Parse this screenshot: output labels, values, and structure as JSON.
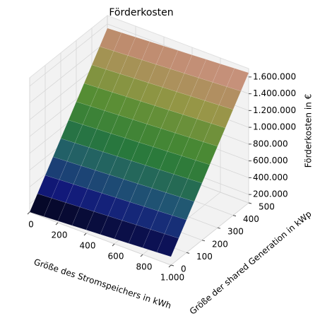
{
  "chart_data": {
    "type": "surface",
    "title": "Förderkosten",
    "x_label": "Größe des Stromspeichers in kWh",
    "y_label": "Größe der shared Generation in kWp",
    "z_label": "Förderkosten in €",
    "x": [
      0,
      100,
      200,
      300,
      400,
      500,
      600,
      700,
      800,
      900,
      1000
    ],
    "y": [
      0,
      50,
      100,
      150,
      200,
      250,
      300,
      350,
      400,
      450,
      500
    ],
    "z": [
      [
        100000,
        110000,
        120000,
        130000,
        140000,
        150000,
        160000,
        170000,
        180000,
        190000,
        200000
      ],
      [
        245000,
        255000,
        265000,
        275000,
        285000,
        295000,
        305000,
        315000,
        325000,
        335000,
        345000
      ],
      [
        390000,
        400000,
        410000,
        420000,
        430000,
        440000,
        450000,
        460000,
        470000,
        480000,
        490000
      ],
      [
        535000,
        545000,
        555000,
        565000,
        575000,
        585000,
        595000,
        605000,
        615000,
        625000,
        635000
      ],
      [
        680000,
        690000,
        700000,
        710000,
        720000,
        730000,
        740000,
        750000,
        760000,
        770000,
        780000
      ],
      [
        825000,
        835000,
        845000,
        855000,
        865000,
        875000,
        885000,
        895000,
        905000,
        915000,
        925000
      ],
      [
        970000,
        980000,
        990000,
        1000000,
        1010000,
        1020000,
        1030000,
        1040000,
        1050000,
        1060000,
        1070000
      ],
      [
        1115000,
        1125000,
        1135000,
        1145000,
        1155000,
        1165000,
        1175000,
        1185000,
        1195000,
        1205000,
        1215000
      ],
      [
        1260000,
        1270000,
        1280000,
        1290000,
        1300000,
        1310000,
        1320000,
        1330000,
        1340000,
        1350000,
        1360000
      ],
      [
        1405000,
        1415000,
        1425000,
        1435000,
        1445000,
        1455000,
        1465000,
        1475000,
        1485000,
        1495000,
        1505000
      ],
      [
        1550000,
        1560000,
        1570000,
        1580000,
        1590000,
        1600000,
        1610000,
        1620000,
        1630000,
        1640000,
        1650000
      ]
    ],
    "xlim": [
      0,
      1000
    ],
    "xticks": [
      0,
      200,
      400,
      600,
      800,
      {
        "value": 1000,
        "label": "1.000"
      }
    ],
    "ylim": [
      0,
      500
    ],
    "yticks": [
      0,
      100,
      200,
      300,
      400,
      500
    ],
    "zlim": [
      100000,
      1700000
    ],
    "zticks": [
      {
        "value": 200000,
        "label": "200.000"
      },
      {
        "value": 400000,
        "label": "400.000"
      },
      {
        "value": 600000,
        "label": "600.000"
      },
      {
        "value": 800000,
        "label": "800.000"
      },
      {
        "value": 1000000,
        "label": "1.000.000"
      },
      {
        "value": 1200000,
        "label": "1.200.000"
      },
      {
        "value": 1400000,
        "label": "1.400.000"
      },
      {
        "value": 1600000,
        "label": "1.600.000"
      }
    ],
    "colormap": "gist_earth",
    "grid": true
  }
}
